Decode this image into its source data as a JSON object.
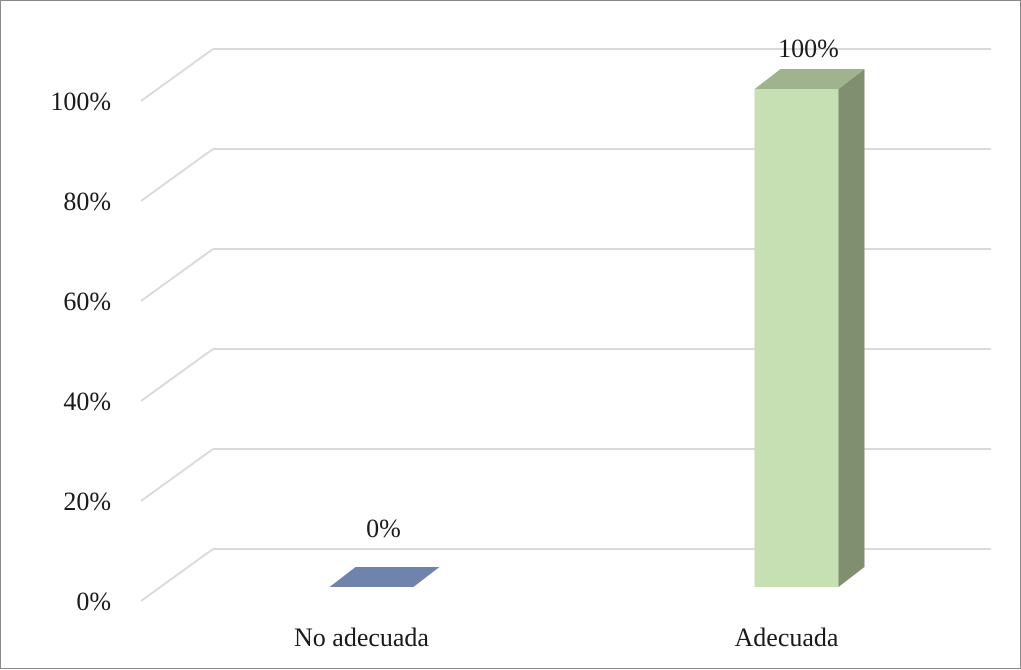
{
  "chart_data": {
    "type": "bar",
    "style": "3d-column",
    "categories": [
      "No adecuada",
      "Adecuada"
    ],
    "values": [
      0,
      100
    ],
    "value_labels": [
      "0%",
      "100%"
    ],
    "colors": [
      {
        "front": "#6f83ac",
        "side": "#4f6088",
        "top": "#6f83ac"
      },
      {
        "front": "#c6e0b4",
        "side": "#7f8f70",
        "top": "#9fb38f"
      }
    ],
    "ylim": [
      0,
      100
    ],
    "yticks": [
      0,
      20,
      40,
      60,
      80,
      100
    ],
    "ytick_labels": [
      "0%",
      "20%",
      "40%",
      "60%",
      "80%",
      "100%"
    ],
    "grid": true,
    "gridline_color": "#d9d9d9",
    "title": "",
    "xlabel": "",
    "ylabel": ""
  }
}
